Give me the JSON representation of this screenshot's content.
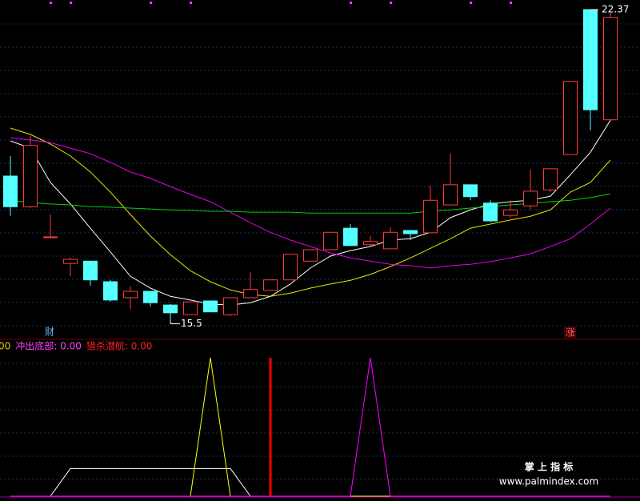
{
  "chart_data": {
    "type": "candlestick",
    "ylim": [
      15.23,
      22.58
    ],
    "up_color": "#ff3c3c",
    "down_color": "#54ffff",
    "candles": [
      {
        "open": 18.73,
        "high": 19.17,
        "low": 17.86,
        "close": 18.06
      },
      {
        "open": 18.06,
        "high": 19.61,
        "low": 18.03,
        "close": 19.4
      },
      {
        "open": 17.4,
        "high": 17.89,
        "low": 17.4,
        "close": 17.4
      },
      {
        "open": 16.82,
        "high": 16.95,
        "low": 16.54,
        "close": 16.91
      },
      {
        "open": 16.87,
        "high": 16.87,
        "low": 16.33,
        "close": 16.46
      },
      {
        "open": 16.42,
        "high": 16.46,
        "low": 15.98,
        "close": 16.02
      },
      {
        "open": 16.07,
        "high": 16.32,
        "low": 15.83,
        "close": 16.21
      },
      {
        "open": 16.21,
        "high": 16.21,
        "low": 15.88,
        "close": 15.96
      },
      {
        "open": 15.91,
        "high": 15.93,
        "low": 15.5,
        "close": 15.74
      },
      {
        "open": 15.7,
        "high": 15.98,
        "low": 15.7,
        "close": 15.98
      },
      {
        "open": 16.0,
        "high": 16.0,
        "low": 15.76,
        "close": 15.76
      },
      {
        "open": 15.7,
        "high": 16.07,
        "low": 15.67,
        "close": 16.07
      },
      {
        "open": 16.07,
        "high": 16.63,
        "low": 16.07,
        "close": 16.25
      },
      {
        "open": 16.23,
        "high": 16.46,
        "low": 16.23,
        "close": 16.46
      },
      {
        "open": 16.46,
        "high": 17.02,
        "low": 16.46,
        "close": 17.02
      },
      {
        "open": 16.87,
        "high": 17.12,
        "low": 16.87,
        "close": 17.12
      },
      {
        "open": 17.12,
        "high": 17.5,
        "low": 17.12,
        "close": 17.5
      },
      {
        "open": 17.59,
        "high": 17.68,
        "low": 17.21,
        "close": 17.21
      },
      {
        "open": 17.23,
        "high": 17.42,
        "low": 17.21,
        "close": 17.3
      },
      {
        "open": 17.14,
        "high": 17.61,
        "low": 17.14,
        "close": 17.5
      },
      {
        "open": 17.54,
        "high": 17.54,
        "low": 17.33,
        "close": 17.47
      },
      {
        "open": 17.49,
        "high": 18.52,
        "low": 17.49,
        "close": 18.2
      },
      {
        "open": 18.1,
        "high": 19.22,
        "low": 18.1,
        "close": 18.54
      },
      {
        "open": 18.54,
        "high": 18.54,
        "low": 18.2,
        "close": 18.28
      },
      {
        "open": 18.14,
        "high": 18.2,
        "low": 17.72,
        "close": 17.75
      },
      {
        "open": 17.87,
        "high": 18.2,
        "low": 17.82,
        "close": 17.99
      },
      {
        "open": 18.08,
        "high": 18.87,
        "low": 17.99,
        "close": 18.4
      },
      {
        "open": 18.43,
        "high": 18.89,
        "low": 18.38,
        "close": 18.89
      },
      {
        "open": 19.2,
        "high": 20.8,
        "low": 19.2,
        "close": 20.8
      },
      {
        "open": 22.37,
        "high": 22.37,
        "low": 19.73,
        "close": 20.18
      },
      {
        "open": 19.96,
        "high": 22.3,
        "low": 19.96,
        "close": 22.2
      }
    ],
    "series": [
      {
        "color": "#ffffff",
        "values": [
          19.5,
          19.34,
          18.59,
          18.12,
          17.59,
          17.07,
          16.54,
          16.28,
          16.1,
          16.02,
          15.93,
          15.91,
          15.96,
          16.1,
          16.37,
          16.72,
          16.98,
          17.1,
          17.19,
          17.33,
          17.36,
          17.5,
          17.82,
          17.99,
          18.12,
          18.17,
          18.2,
          18.29,
          18.76,
          19.25,
          19.95
        ]
      },
      {
        "color": "#e6e600",
        "values": [
          19.78,
          19.64,
          19.43,
          19.17,
          18.82,
          18.38,
          17.89,
          17.42,
          17.01,
          16.66,
          16.42,
          16.24,
          16.14,
          16.1,
          16.17,
          16.28,
          16.37,
          16.45,
          16.58,
          16.75,
          16.94,
          17.15,
          17.36,
          17.59,
          17.68,
          17.77,
          17.85,
          17.99,
          18.38,
          18.59,
          19.08
        ]
      },
      {
        "color": "#e600e6",
        "values": [
          19.57,
          19.52,
          19.46,
          19.34,
          19.22,
          19.03,
          18.82,
          18.68,
          18.5,
          18.33,
          18.17,
          17.94,
          17.71,
          17.5,
          17.33,
          17.19,
          17.05,
          16.94,
          16.87,
          16.8,
          16.77,
          16.72,
          16.77,
          16.8,
          16.86,
          16.94,
          17.03,
          17.19,
          17.36,
          17.68,
          18.03
        ]
      },
      {
        "color": "#00d200",
        "values": [
          18.2,
          18.15,
          18.12,
          18.1,
          18.06,
          18.05,
          18.03,
          18.01,
          17.99,
          17.98,
          17.96,
          17.96,
          17.94,
          17.94,
          17.94,
          17.92,
          17.92,
          17.92,
          17.92,
          17.92,
          17.92,
          17.96,
          17.99,
          18.03,
          18.06,
          18.1,
          18.13,
          18.17,
          18.2,
          18.26,
          18.34
        ]
      }
    ],
    "annotations": [
      "财",
      "涨"
    ],
    "indicator": {
      "ylim": [
        0,
        1
      ],
      "legend": [
        {
          "text": "00",
          "color": "#e6c800"
        },
        {
          "text": "冲出底部: 0.00",
          "color": "#ff40ff"
        },
        {
          "text": "猎杀潜航: 0.00",
          "color": "#ff2020"
        }
      ],
      "series": [
        {
          "color": "#ffffff",
          "values": [
            0,
            0,
            0,
            0.2,
            0.2,
            0.2,
            0.2,
            0.2,
            0.2,
            0.2,
            0.2,
            0.2,
            0,
            0,
            0,
            0,
            0,
            0,
            0,
            0,
            0,
            0,
            0,
            0,
            0,
            0,
            0,
            0,
            0,
            0,
            0
          ]
        },
        {
          "color": "#ffff00",
          "values": [
            0,
            0,
            0,
            0,
            0,
            0,
            0,
            0,
            0,
            0,
            1,
            0,
            0,
            0,
            0,
            0,
            0,
            0,
            0,
            0,
            0,
            0,
            0,
            0,
            0,
            0,
            0,
            0,
            0,
            0,
            0
          ]
        },
        {
          "color": "#ff00ff",
          "values": [
            0,
            0,
            0,
            0,
            0,
            0,
            0,
            0,
            0,
            0,
            0,
            0,
            0,
            0,
            0,
            0,
            0,
            0,
            1,
            0,
            0,
            0,
            0,
            0,
            0,
            0,
            0,
            0,
            0,
            0,
            0
          ]
        }
      ],
      "bars": {
        "color": "#ff0000",
        "values": [
          0,
          0,
          0,
          0,
          0,
          0,
          0,
          0,
          0,
          0,
          0,
          0,
          0,
          1,
          0,
          0,
          0,
          0,
          0,
          0,
          0,
          0,
          0,
          0,
          0,
          0,
          0,
          0,
          0,
          0,
          0
        ]
      }
    },
    "watermark": {
      "title": "掌 上 指 标",
      "url": "www.palmindex.com"
    }
  }
}
